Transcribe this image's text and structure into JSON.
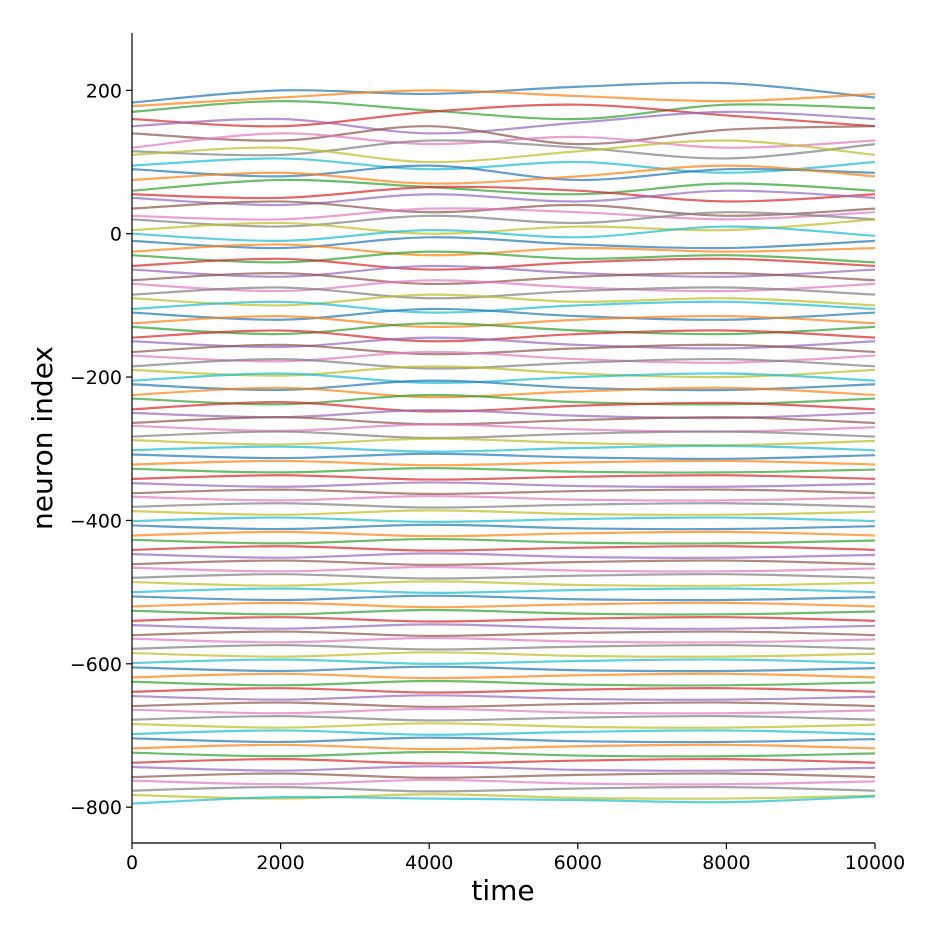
{
  "chart_data": {
    "type": "line",
    "x_label": "time",
    "y_label": "neuron index",
    "xlim": [
      0,
      10000
    ],
    "xticks": [
      0,
      2000,
      4000,
      6000,
      8000,
      10000
    ],
    "ylim": [
      -850,
      280
    ],
    "yticks": [
      {
        "value": -800,
        "label": "−800"
      },
      {
        "value": -600,
        "label": "−600"
      },
      {
        "value": -400,
        "label": "−400"
      },
      {
        "value": -200,
        "label": "−200"
      },
      0,
      200
    ],
    "color_cycle": [
      "#1f77b4",
      "#ff7f0e",
      "#2ca02c",
      "#d62728",
      "#9467bd",
      "#8c564b",
      "#e377c2",
      "#7f7f7f",
      "#bcbd22",
      "#17becf"
    ],
    "x": [
      0,
      2000,
      4000,
      6000,
      8000,
      10000
    ],
    "series": [
      {
        "values": [
          183,
          200,
          195,
          205,
          210,
          190
        ]
      },
      {
        "values": [
          178,
          190,
          200,
          192,
          185,
          195
        ]
      },
      {
        "values": [
          170,
          185,
          172,
          160,
          180,
          175
        ]
      },
      {
        "values": [
          160,
          150,
          170,
          180,
          165,
          150
        ]
      },
      {
        "values": [
          150,
          160,
          140,
          155,
          170,
          160
        ]
      },
      {
        "values": [
          140,
          130,
          150,
          125,
          145,
          150
        ]
      },
      {
        "values": [
          120,
          140,
          125,
          135,
          120,
          130
        ]
      },
      {
        "values": [
          115,
          110,
          130,
          120,
          105,
          125
        ]
      },
      {
        "values": [
          110,
          120,
          100,
          115,
          130,
          110
        ]
      },
      {
        "values": [
          95,
          105,
          90,
          100,
          85,
          100
        ]
      },
      {
        "values": [
          90,
          80,
          95,
          75,
          90,
          85
        ]
      },
      {
        "values": [
          75,
          85,
          70,
          80,
          95,
          80
        ]
      },
      {
        "values": [
          60,
          75,
          65,
          55,
          70,
          60
        ]
      },
      {
        "values": [
          55,
          50,
          65,
          60,
          45,
          55
        ]
      },
      {
        "values": [
          50,
          40,
          55,
          45,
          60,
          50
        ]
      },
      {
        "values": [
          35,
          45,
          30,
          40,
          25,
          35
        ]
      },
      {
        "values": [
          25,
          20,
          35,
          30,
          20,
          30
        ]
      },
      {
        "values": [
          20,
          10,
          25,
          15,
          30,
          20
        ]
      },
      {
        "values": [
          5,
          15,
          0,
          10,
          5,
          20
        ]
      },
      {
        "values": [
          0,
          -10,
          5,
          -5,
          10,
          -3
        ]
      },
      {
        "values": [
          -10,
          -20,
          -5,
          -15,
          -20,
          -10
        ]
      },
      {
        "values": [
          -25,
          -15,
          -30,
          -20,
          -25,
          -20
        ]
      },
      {
        "values": [
          -30,
          -40,
          -25,
          -35,
          -30,
          -40
        ]
      },
      {
        "values": [
          -45,
          -35,
          -50,
          -40,
          -35,
          -45
        ]
      },
      {
        "values": [
          -50,
          -60,
          -45,
          -55,
          -60,
          -50
        ]
      },
      {
        "values": [
          -65,
          -55,
          -70,
          -60,
          -55,
          -65
        ]
      },
      {
        "values": [
          -70,
          -80,
          -65,
          -75,
          -80,
          -70
        ]
      },
      {
        "values": [
          -85,
          -75,
          -90,
          -80,
          -75,
          -85
        ]
      },
      {
        "values": [
          -90,
          -100,
          -85,
          -95,
          -90,
          -100
        ]
      },
      {
        "values": [
          -105,
          -95,
          -110,
          -100,
          -95,
          -105
        ]
      },
      {
        "values": [
          -110,
          -120,
          -105,
          -115,
          -120,
          -110
        ]
      },
      {
        "values": [
          -125,
          -115,
          -130,
          -120,
          -115,
          -125
        ]
      },
      {
        "values": [
          -130,
          -140,
          -125,
          -135,
          -140,
          -130
        ]
      },
      {
        "values": [
          -145,
          -135,
          -150,
          -140,
          -135,
          -145
        ]
      },
      {
        "values": [
          -150,
          -158,
          -145,
          -155,
          -160,
          -150
        ]
      },
      {
        "values": [
          -165,
          -155,
          -168,
          -160,
          -155,
          -165
        ]
      },
      {
        "values": [
          -170,
          -178,
          -165,
          -175,
          -180,
          -170
        ]
      },
      {
        "values": [
          -185,
          -175,
          -188,
          -180,
          -175,
          -185
        ]
      },
      {
        "values": [
          -190,
          -198,
          -185,
          -195,
          -200,
          -190
        ]
      },
      {
        "values": [
          -205,
          -195,
          -208,
          -200,
          -195,
          -205
        ]
      },
      {
        "values": [
          -210,
          -218,
          -205,
          -215,
          -218,
          -210
        ]
      },
      {
        "values": [
          -225,
          -215,
          -228,
          -220,
          -215,
          -225
        ]
      },
      {
        "values": [
          -230,
          -238,
          -225,
          -235,
          -238,
          -230
        ]
      },
      {
        "values": [
          -245,
          -235,
          -248,
          -240,
          -236,
          -245
        ]
      },
      {
        "values": [
          -250,
          -256,
          -246,
          -254,
          -257,
          -250
        ]
      },
      {
        "values": [
          -264,
          -256,
          -266,
          -260,
          -256,
          -264
        ]
      },
      {
        "values": [
          -268,
          -275,
          -266,
          -273,
          -276,
          -270
        ]
      },
      {
        "values": [
          -283,
          -276,
          -285,
          -279,
          -276,
          -283
        ]
      },
      {
        "values": [
          -288,
          -294,
          -286,
          -292,
          -295,
          -289
        ]
      },
      {
        "values": [
          -302,
          -297,
          -304,
          -299,
          -296,
          -302
        ]
      },
      {
        "values": [
          -308,
          -313,
          -307,
          -312,
          -314,
          -309
        ]
      },
      {
        "values": [
          -322,
          -317,
          -323,
          -319,
          -317,
          -322
        ]
      },
      {
        "values": [
          -328,
          -333,
          -327,
          -332,
          -333,
          -329
        ]
      },
      {
        "values": [
          -342,
          -337,
          -343,
          -339,
          -337,
          -342
        ]
      },
      {
        "values": [
          -348,
          -353,
          -347,
          -352,
          -353,
          -349
        ]
      },
      {
        "values": [
          -362,
          -357,
          -363,
          -359,
          -357,
          -362
        ]
      },
      {
        "values": [
          -367,
          -372,
          -366,
          -371,
          -372,
          -368
        ]
      },
      {
        "values": [
          -381,
          -376,
          -382,
          -378,
          -376,
          -381
        ]
      },
      {
        "values": [
          -387,
          -392,
          -386,
          -391,
          -392,
          -388
        ]
      },
      {
        "values": [
          -401,
          -396,
          -402,
          -398,
          -396,
          -401
        ]
      },
      {
        "values": [
          -407,
          -412,
          -406,
          -411,
          -412,
          -408
        ]
      },
      {
        "values": [
          -421,
          -416,
          -422,
          -418,
          -416,
          -421
        ]
      },
      {
        "values": [
          -427,
          -432,
          -426,
          -431,
          -432,
          -428
        ]
      },
      {
        "values": [
          -441,
          -436,
          -442,
          -438,
          -436,
          -441
        ]
      },
      {
        "values": [
          -447,
          -452,
          -446,
          -451,
          -452,
          -448
        ]
      },
      {
        "values": [
          -461,
          -456,
          -462,
          -458,
          -456,
          -461
        ]
      },
      {
        "values": [
          -466,
          -471,
          -465,
          -470,
          -471,
          -467
        ]
      },
      {
        "values": [
          -480,
          -475,
          -481,
          -477,
          -475,
          -480
        ]
      },
      {
        "values": [
          -486,
          -491,
          -485,
          -490,
          -491,
          -487
        ]
      },
      {
        "values": [
          -500,
          -495,
          -501,
          -497,
          -495,
          -500
        ]
      },
      {
        "values": [
          -506,
          -511,
          -505,
          -510,
          -511,
          -507
        ]
      },
      {
        "values": [
          -520,
          -515,
          -521,
          -517,
          -515,
          -520
        ]
      },
      {
        "values": [
          -526,
          -531,
          -525,
          -530,
          -531,
          -527
        ]
      },
      {
        "values": [
          -540,
          -535,
          -541,
          -537,
          -535,
          -540
        ]
      },
      {
        "values": [
          -546,
          -551,
          -545,
          -550,
          -551,
          -547
        ]
      },
      {
        "values": [
          -560,
          -555,
          -561,
          -557,
          -555,
          -560
        ]
      },
      {
        "values": [
          -565,
          -570,
          -564,
          -569,
          -570,
          -566
        ]
      },
      {
        "values": [
          -579,
          -574,
          -580,
          -576,
          -574,
          -579
        ]
      },
      {
        "values": [
          -585,
          -590,
          -584,
          -589,
          -590,
          -586
        ]
      },
      {
        "values": [
          -599,
          -594,
          -600,
          -596,
          -594,
          -599
        ]
      },
      {
        "values": [
          -605,
          -610,
          -604,
          -609,
          -610,
          -606
        ]
      },
      {
        "values": [
          -619,
          -614,
          -620,
          -616,
          -614,
          -619
        ]
      },
      {
        "values": [
          -625,
          -630,
          -624,
          -629,
          -630,
          -626
        ]
      },
      {
        "values": [
          -639,
          -634,
          -640,
          -636,
          -634,
          -639
        ]
      },
      {
        "values": [
          -645,
          -650,
          -644,
          -649,
          -650,
          -646
        ]
      },
      {
        "values": [
          -659,
          -654,
          -660,
          -656,
          -654,
          -659
        ]
      },
      {
        "values": [
          -664,
          -669,
          -663,
          -668,
          -669,
          -665
        ]
      },
      {
        "values": [
          -678,
          -673,
          -679,
          -675,
          -673,
          -678
        ]
      },
      {
        "values": [
          -684,
          -689,
          -683,
          -688,
          -689,
          -685
        ]
      },
      {
        "values": [
          -698,
          -693,
          -699,
          -695,
          -693,
          -698
        ]
      },
      {
        "values": [
          -704,
          -709,
          -703,
          -708,
          -709,
          -705
        ]
      },
      {
        "values": [
          -718,
          -713,
          -719,
          -715,
          -713,
          -718
        ]
      },
      {
        "values": [
          -724,
          -729,
          -723,
          -728,
          -729,
          -725
        ]
      },
      {
        "values": [
          -738,
          -733,
          -739,
          -735,
          -733,
          -738
        ]
      },
      {
        "values": [
          -744,
          -749,
          -743,
          -748,
          -749,
          -745
        ]
      },
      {
        "values": [
          -758,
          -753,
          -759,
          -755,
          -753,
          -758
        ]
      },
      {
        "values": [
          -763,
          -768,
          -762,
          -767,
          -768,
          -764
        ]
      },
      {
        "values": [
          -777,
          -772,
          -778,
          -774,
          -772,
          -777
        ]
      },
      {
        "values": [
          -783,
          -788,
          -782,
          -787,
          -788,
          -784
        ]
      },
      {
        "values": [
          -795,
          -786,
          -788,
          -790,
          -793,
          -785
        ]
      }
    ]
  }
}
